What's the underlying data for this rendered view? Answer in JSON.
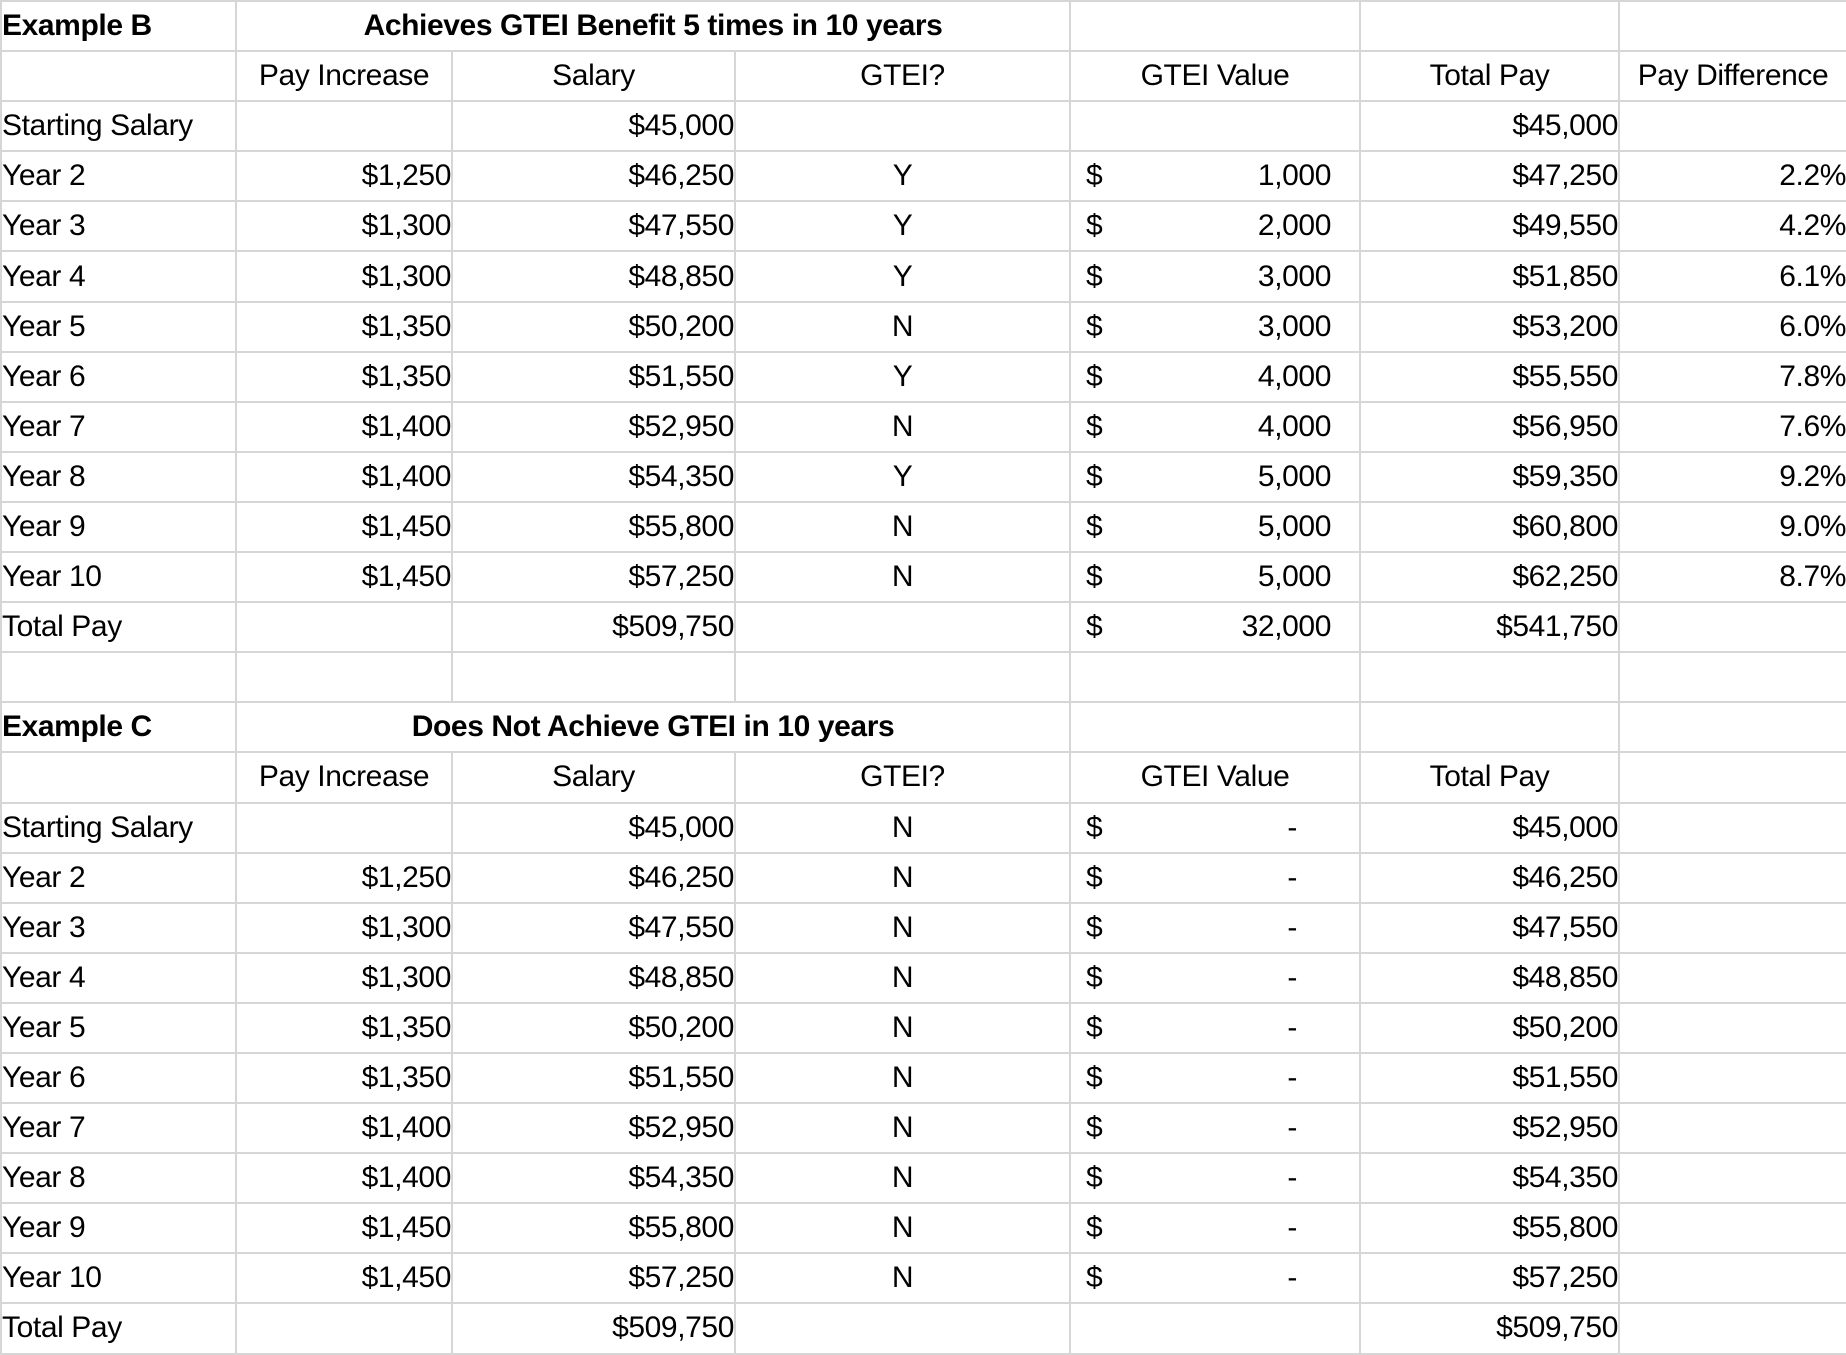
{
  "sheet": {
    "grid_color": "#d6d6d6",
    "highlight_color": "#fcf0c8",
    "text_color": "#000000",
    "background_color": "#ffffff"
  },
  "tables": [
    {
      "name": "Example B",
      "title": "Achieves GTEI Benefit 5 times in 10 years",
      "column_headers": [
        "",
        "Pay Increase",
        "Salary",
        "GTEI?",
        "GTEI Value",
        "Total Pay",
        "Pay Difference"
      ],
      "rows": [
        {
          "label": "Starting Salary",
          "pay_increase": "",
          "salary": "$45,000",
          "gtei": "",
          "gtei_currency": "",
          "gtei_amount": "",
          "total_pay": "$45,000",
          "pay_difference": "",
          "highlight": false
        },
        {
          "label": "Year 2",
          "pay_increase": "$1,250",
          "salary": "$46,250",
          "gtei": "Y",
          "gtei_currency": "$",
          "gtei_amount": "1,000",
          "total_pay": "$47,250",
          "pay_difference": "2.2%",
          "highlight": true
        },
        {
          "label": "Year 3",
          "pay_increase": "$1,300",
          "salary": "$47,550",
          "gtei": "Y",
          "gtei_currency": "$",
          "gtei_amount": "2,000",
          "total_pay": "$49,550",
          "pay_difference": "4.2%",
          "highlight": true
        },
        {
          "label": "Year 4",
          "pay_increase": "$1,300",
          "salary": "$48,850",
          "gtei": "Y",
          "gtei_currency": "$",
          "gtei_amount": "3,000",
          "total_pay": "$51,850",
          "pay_difference": "6.1%",
          "highlight": true
        },
        {
          "label": "Year 5",
          "pay_increase": "$1,350",
          "salary": "$50,200",
          "gtei": "N",
          "gtei_currency": "$",
          "gtei_amount": "3,000",
          "total_pay": "$53,200",
          "pay_difference": "6.0%",
          "highlight": false
        },
        {
          "label": "Year 6",
          "pay_increase": "$1,350",
          "salary": "$51,550",
          "gtei": "Y",
          "gtei_currency": "$",
          "gtei_amount": "4,000",
          "total_pay": "$55,550",
          "pay_difference": "7.8%",
          "highlight": true
        },
        {
          "label": "Year 7",
          "pay_increase": "$1,400",
          "salary": "$52,950",
          "gtei": "N",
          "gtei_currency": "$",
          "gtei_amount": "4,000",
          "total_pay": "$56,950",
          "pay_difference": "7.6%",
          "highlight": false
        },
        {
          "label": "Year 8",
          "pay_increase": "$1,400",
          "salary": "$54,350",
          "gtei": "Y",
          "gtei_currency": "$",
          "gtei_amount": "5,000",
          "total_pay": "$59,350",
          "pay_difference": "9.2%",
          "highlight": true
        },
        {
          "label": "Year 9",
          "pay_increase": "$1,450",
          "salary": "$55,800",
          "gtei": "N",
          "gtei_currency": "$",
          "gtei_amount": "5,000",
          "total_pay": "$60,800",
          "pay_difference": "9.0%",
          "highlight": false
        },
        {
          "label": "Year 10",
          "pay_increase": "$1,450",
          "salary": "$57,250",
          "gtei": "N",
          "gtei_currency": "$",
          "gtei_amount": "5,000",
          "total_pay": "$62,250",
          "pay_difference": "8.7%",
          "highlight": false
        },
        {
          "label": "Total Pay",
          "pay_increase": "",
          "salary": "$509,750",
          "gtei": "",
          "gtei_currency": "$",
          "gtei_amount": "32,000",
          "total_pay": "$541,750",
          "pay_difference": "",
          "highlight": false
        }
      ]
    },
    {
      "name": "Example C",
      "title": "Does Not Achieve GTEI in 10 years",
      "column_headers": [
        "",
        "Pay Increase",
        "Salary",
        "GTEI?",
        "GTEI Value",
        "Total Pay",
        ""
      ],
      "rows": [
        {
          "label": "Starting Salary",
          "pay_increase": "",
          "salary": "$45,000",
          "gtei": "N",
          "gtei_currency": "$",
          "gtei_amount": "-",
          "total_pay": "$45,000",
          "pay_difference": "",
          "highlight": false
        },
        {
          "label": "Year 2",
          "pay_increase": "$1,250",
          "salary": "$46,250",
          "gtei": "N",
          "gtei_currency": "$",
          "gtei_amount": "-",
          "total_pay": "$46,250",
          "pay_difference": "",
          "highlight": false
        },
        {
          "label": "Year 3",
          "pay_increase": "$1,300",
          "salary": "$47,550",
          "gtei": "N",
          "gtei_currency": "$",
          "gtei_amount": "-",
          "total_pay": "$47,550",
          "pay_difference": "",
          "highlight": false
        },
        {
          "label": "Year 4",
          "pay_increase": "$1,300",
          "salary": "$48,850",
          "gtei": "N",
          "gtei_currency": "$",
          "gtei_amount": "-",
          "total_pay": "$48,850",
          "pay_difference": "",
          "highlight": false
        },
        {
          "label": "Year 5",
          "pay_increase": "$1,350",
          "salary": "$50,200",
          "gtei": "N",
          "gtei_currency": "$",
          "gtei_amount": "-",
          "total_pay": "$50,200",
          "pay_difference": "",
          "highlight": false
        },
        {
          "label": "Year 6",
          "pay_increase": "$1,350",
          "salary": "$51,550",
          "gtei": "N",
          "gtei_currency": "$",
          "gtei_amount": "-",
          "total_pay": "$51,550",
          "pay_difference": "",
          "highlight": false
        },
        {
          "label": "Year 7",
          "pay_increase": "$1,400",
          "salary": "$52,950",
          "gtei": "N",
          "gtei_currency": "$",
          "gtei_amount": "-",
          "total_pay": "$52,950",
          "pay_difference": "",
          "highlight": false
        },
        {
          "label": "Year 8",
          "pay_increase": "$1,400",
          "salary": "$54,350",
          "gtei": "N",
          "gtei_currency": "$",
          "gtei_amount": "-",
          "total_pay": "$54,350",
          "pay_difference": "",
          "highlight": false
        },
        {
          "label": "Year 9",
          "pay_increase": "$1,450",
          "salary": "$55,800",
          "gtei": "N",
          "gtei_currency": "$",
          "gtei_amount": "-",
          "total_pay": "$55,800",
          "pay_difference": "",
          "highlight": false
        },
        {
          "label": "Year 10",
          "pay_increase": "$1,450",
          "salary": "$57,250",
          "gtei": "N",
          "gtei_currency": "$",
          "gtei_amount": "-",
          "total_pay": "$57,250",
          "pay_difference": "",
          "highlight": false
        },
        {
          "label": "Total Pay",
          "pay_increase": "",
          "salary": "$509,750",
          "gtei": "",
          "gtei_currency": "",
          "gtei_amount": "",
          "total_pay": "$509,750",
          "pay_difference": "",
          "highlight": false
        }
      ]
    }
  ]
}
